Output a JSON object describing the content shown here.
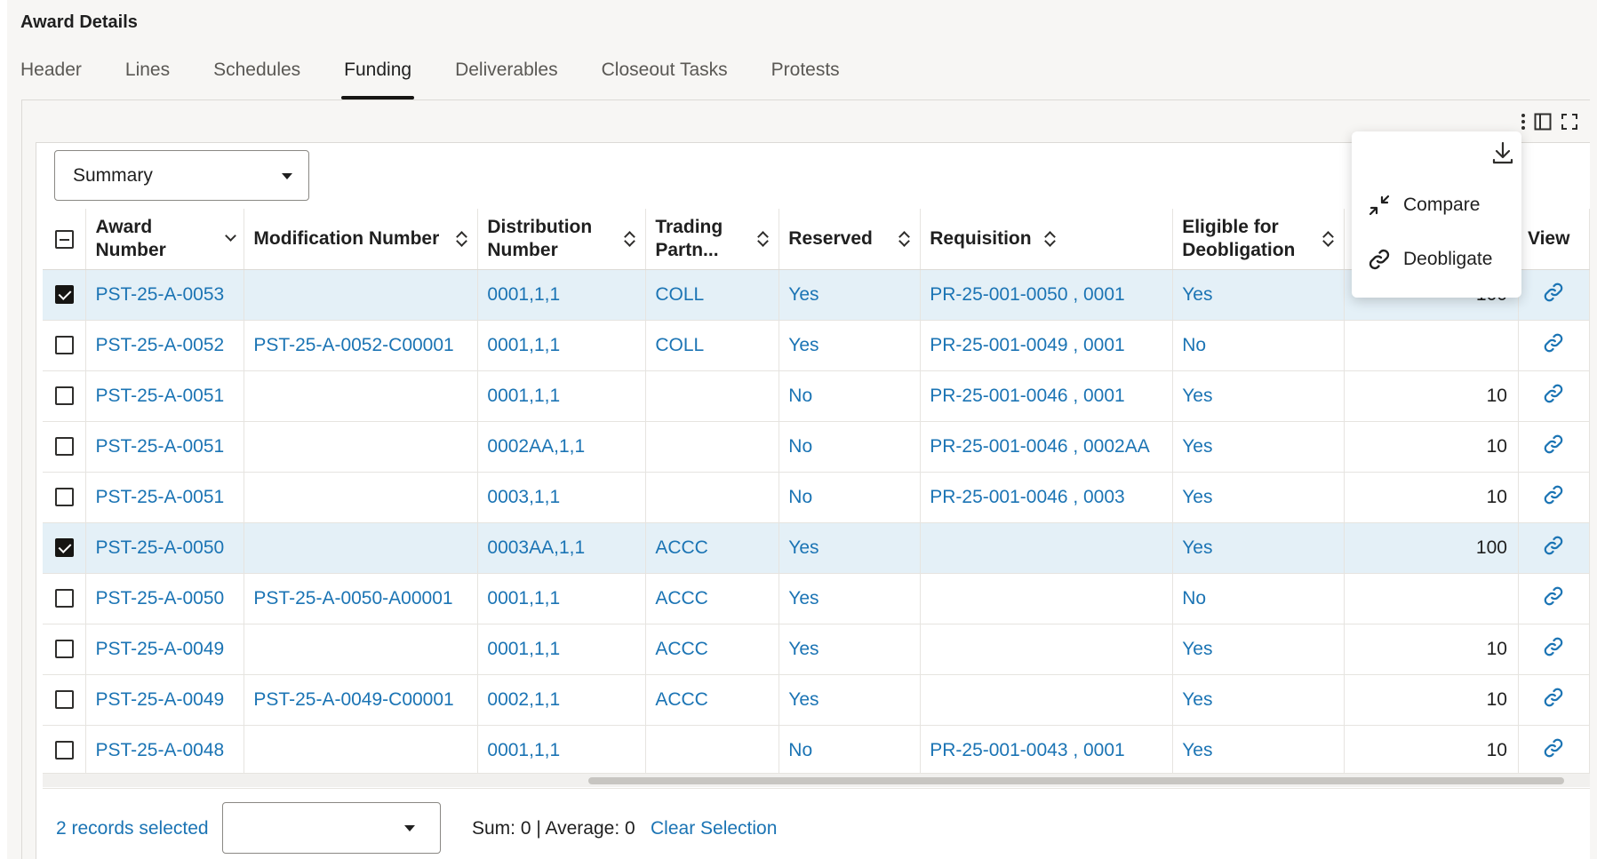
{
  "page_title": "Award Details",
  "tabs": [
    {
      "label": "Header",
      "active": false
    },
    {
      "label": "Lines",
      "active": false
    },
    {
      "label": "Schedules",
      "active": false
    },
    {
      "label": "Funding",
      "active": true
    },
    {
      "label": "Deliverables",
      "active": false
    },
    {
      "label": "Closeout Tasks",
      "active": false
    },
    {
      "label": "Protests",
      "active": false
    }
  ],
  "view_select": {
    "value": "Summary"
  },
  "columns": {
    "award_number": "Award Number",
    "modification_number": "Modification Number",
    "distribution_number": "Distribution Number",
    "trading_partner": "Trading Partn...",
    "reserved": "Reserved",
    "requisition": "Requisition",
    "eligible": "Eligible for Deobligation",
    "view": "View"
  },
  "rows": [
    {
      "selected": true,
      "award": "PST-25-A-0053",
      "mod": "",
      "dist": "0001,1,1",
      "partner": "COLL",
      "reserved": "Yes",
      "req": "PR-25-001-0050 , 0001",
      "eligible": "Yes",
      "amount": "100"
    },
    {
      "selected": false,
      "award": "PST-25-A-0052",
      "mod": "PST-25-A-0052-C00001",
      "dist": "0001,1,1",
      "partner": "COLL",
      "reserved": "Yes",
      "req": "PR-25-001-0049 , 0001",
      "eligible": "No",
      "amount": ""
    },
    {
      "selected": false,
      "award": "PST-25-A-0051",
      "mod": "",
      "dist": "0001,1,1",
      "partner": "",
      "reserved": "No",
      "req": "PR-25-001-0046 , 0001",
      "eligible": "Yes",
      "amount": "10"
    },
    {
      "selected": false,
      "award": "PST-25-A-0051",
      "mod": "",
      "dist": "0002AA,1,1",
      "partner": "",
      "reserved": "No",
      "req": "PR-25-001-0046 , 0002AA",
      "eligible": "Yes",
      "amount": "10"
    },
    {
      "selected": false,
      "award": "PST-25-A-0051",
      "mod": "",
      "dist": "0003,1,1",
      "partner": "",
      "reserved": "No",
      "req": "PR-25-001-0046 , 0003",
      "eligible": "Yes",
      "amount": "10"
    },
    {
      "selected": true,
      "award": "PST-25-A-0050",
      "mod": "",
      "dist": "0003AA,1,1",
      "partner": "ACCC",
      "reserved": "Yes",
      "req": "",
      "eligible": "Yes",
      "amount": "100"
    },
    {
      "selected": false,
      "award": "PST-25-A-0050",
      "mod": "PST-25-A-0050-A00001",
      "dist": "0001,1,1",
      "partner": "ACCC",
      "reserved": "Yes",
      "req": "",
      "eligible": "No",
      "amount": ""
    },
    {
      "selected": false,
      "award": "PST-25-A-0049",
      "mod": "",
      "dist": "0001,1,1",
      "partner": "ACCC",
      "reserved": "Yes",
      "req": "",
      "eligible": "Yes",
      "amount": "10"
    },
    {
      "selected": false,
      "award": "PST-25-A-0049",
      "mod": "PST-25-A-0049-C00001",
      "dist": "0002,1,1",
      "partner": "ACCC",
      "reserved": "Yes",
      "req": "",
      "eligible": "Yes",
      "amount": "10"
    },
    {
      "selected": false,
      "award": "PST-25-A-0048",
      "mod": "",
      "dist": "0001,1,1",
      "partner": "",
      "reserved": "No",
      "req": "PR-25-001-0043 , 0001",
      "eligible": "Yes",
      "amount": "10"
    }
  ],
  "popup_menu": {
    "items": [
      {
        "label": "Compare",
        "icon": "compare-icon"
      },
      {
        "label": "Deobligate",
        "icon": "link-icon"
      }
    ]
  },
  "footer": {
    "records_selected": "2 records selected",
    "action_select_value": "",
    "sum_average": "Sum: 0 | Average: 0",
    "clear_selection": "Clear Selection"
  },
  "colors": {
    "link": "#1b74b4",
    "selected_row": "#e4f0f7",
    "active_tab_underline": "#161513"
  }
}
